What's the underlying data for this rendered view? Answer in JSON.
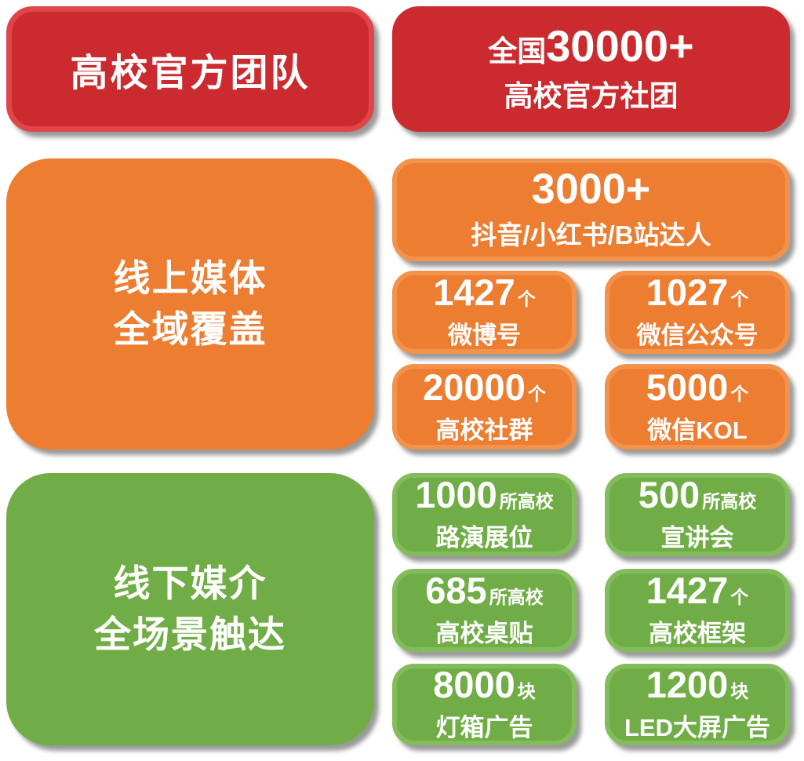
{
  "colors": {
    "red": "#cb2b2e",
    "red_light": "#e04547",
    "orange": "#ed7d31",
    "orange_light": "#f2934d",
    "green": "#70ad47",
    "green_light": "#83bd5b",
    "text": "#ffffff"
  },
  "sections": {
    "official": {
      "title": "高校官方团队",
      "stat": {
        "prefix": "全国",
        "number": "30000+",
        "label": "高校官方社团"
      }
    },
    "online": {
      "title_lines": [
        "线上媒体",
        "全域覆盖"
      ],
      "hero": {
        "number": "3000+",
        "label": "抖音/小红书/B站达人"
      },
      "stats": [
        {
          "number": "1427",
          "unit": "个",
          "label": "微博号"
        },
        {
          "number": "1027",
          "unit": "个",
          "label": "微信公众号"
        },
        {
          "number": "20000",
          "unit": "个",
          "label": "高校社群"
        },
        {
          "number": "5000",
          "unit": "个",
          "label": "微信KOL"
        }
      ]
    },
    "offline": {
      "title_lines": [
        "线下媒介",
        "全场景触达"
      ],
      "stats": [
        {
          "number": "1000",
          "unit": "所高校",
          "label": "路演展位"
        },
        {
          "number": "500",
          "unit": "所高校",
          "label": "宣讲会"
        },
        {
          "number": "685",
          "unit": "所高校",
          "label": "高校桌贴"
        },
        {
          "number": "1427",
          "unit": "个",
          "label": "高校框架"
        },
        {
          "number": "8000",
          "unit": "块",
          "label": "灯箱广告"
        },
        {
          "number": "1200",
          "unit": "块",
          "label": "LED大屏广告"
        }
      ]
    }
  }
}
